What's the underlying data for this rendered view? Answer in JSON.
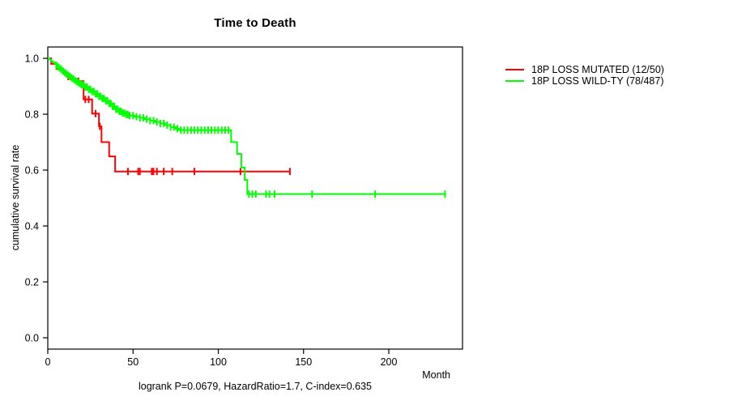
{
  "title": "Time to Death",
  "axes": {
    "x_label": "Month",
    "y_label": "cumulative survival rate"
  },
  "caption": "logrank P=0.0679, HazardRatio=1.7, C-index=0.635",
  "chart_data": {
    "type": "line",
    "subtype": "kaplan-meier-survival",
    "title": "Time to Death",
    "xlabel": "Month",
    "ylabel": "cumulative survival rate",
    "xlim": [
      0,
      243
    ],
    "ylim": [
      0,
      1
    ],
    "x_ticks": [
      0,
      50,
      100,
      150,
      200
    ],
    "y_ticks": [
      0.0,
      0.2,
      0.4,
      0.6,
      0.8,
      1.0
    ],
    "grid": false,
    "legend_position": "right-outside",
    "stats": {
      "logrank_p": 0.0679,
      "hazard_ratio": 1.7,
      "c_index": 0.635
    },
    "series": [
      {
        "id": "mutated",
        "name": "18P LOSS MUTATED (12/50)",
        "events_over_n": "12/50",
        "color": "#FF0000",
        "steps": [
          [
            0,
            1.0
          ],
          [
            2,
            0.98
          ],
          [
            5,
            0.962
          ],
          [
            9,
            0.945
          ],
          [
            11,
            0.935
          ],
          [
            13,
            0.926
          ],
          [
            17,
            0.918
          ],
          [
            21,
            0.853
          ],
          [
            26,
            0.802
          ],
          [
            30,
            0.757
          ],
          [
            31.5,
            0.7
          ],
          [
            36,
            0.649
          ],
          [
            39.5,
            0.595
          ]
        ],
        "end_month": 142,
        "censor_months": [
          12,
          18,
          22,
          24,
          28,
          30.5,
          47,
          53,
          54,
          61,
          62,
          64,
          68,
          73,
          86,
          113,
          142
        ]
      },
      {
        "id": "wild-type",
        "name": "18P LOSS WILD-TY (78/487)",
        "events_over_n": "78/487",
        "color": "#00FF00",
        "steps": [
          [
            0,
            1.0
          ],
          [
            1,
            0.996
          ],
          [
            2,
            0.99
          ],
          [
            3,
            0.986
          ],
          [
            4,
            0.981
          ],
          [
            5,
            0.975
          ],
          [
            6,
            0.97
          ],
          [
            7,
            0.965
          ],
          [
            8,
            0.96
          ],
          [
            9,
            0.954
          ],
          [
            10,
            0.949
          ],
          [
            11,
            0.944
          ],
          [
            12,
            0.94
          ],
          [
            13,
            0.935
          ],
          [
            14,
            0.93
          ],
          [
            15,
            0.926
          ],
          [
            16,
            0.921
          ],
          [
            17,
            0.917
          ],
          [
            18,
            0.913
          ],
          [
            19,
            0.909
          ],
          [
            20,
            0.905
          ],
          [
            22,
            0.897
          ],
          [
            24,
            0.889
          ],
          [
            26,
            0.881
          ],
          [
            28,
            0.873
          ],
          [
            30,
            0.864
          ],
          [
            32,
            0.856
          ],
          [
            34,
            0.848
          ],
          [
            36,
            0.838
          ],
          [
            38,
            0.828
          ],
          [
            40,
            0.818
          ],
          [
            42,
            0.81
          ],
          [
            44,
            0.804
          ],
          [
            46,
            0.799
          ],
          [
            48,
            0.795
          ],
          [
            51,
            0.791
          ],
          [
            54,
            0.787
          ],
          [
            57,
            0.782
          ],
          [
            60,
            0.777
          ],
          [
            63,
            0.772
          ],
          [
            66,
            0.767
          ],
          [
            69,
            0.761
          ],
          [
            72,
            0.754
          ],
          [
            75,
            0.748
          ],
          [
            77,
            0.743
          ],
          [
            107.5,
            0.7
          ],
          [
            111,
            0.658
          ],
          [
            113.5,
            0.609
          ],
          [
            115.5,
            0.565
          ],
          [
            117,
            0.514
          ]
        ],
        "end_month": 233,
        "censor_months": [
          5,
          6,
          7,
          8,
          9,
          10,
          11,
          12,
          13,
          14,
          15,
          16,
          17,
          18,
          19,
          20,
          21,
          22,
          23,
          24,
          25,
          26,
          27,
          28,
          29,
          30,
          31,
          32,
          33,
          34,
          35,
          36,
          37,
          38,
          39,
          40,
          41,
          42,
          43,
          44,
          45,
          46,
          47,
          48,
          50,
          52,
          54,
          56,
          58,
          60,
          62,
          64,
          66,
          68,
          70,
          72,
          74,
          76,
          78,
          80,
          82,
          84,
          86,
          88,
          90,
          92,
          94,
          96,
          98,
          100,
          102,
          104,
          106,
          118,
          120,
          122,
          128,
          130,
          133,
          155,
          192,
          233
        ]
      }
    ]
  }
}
